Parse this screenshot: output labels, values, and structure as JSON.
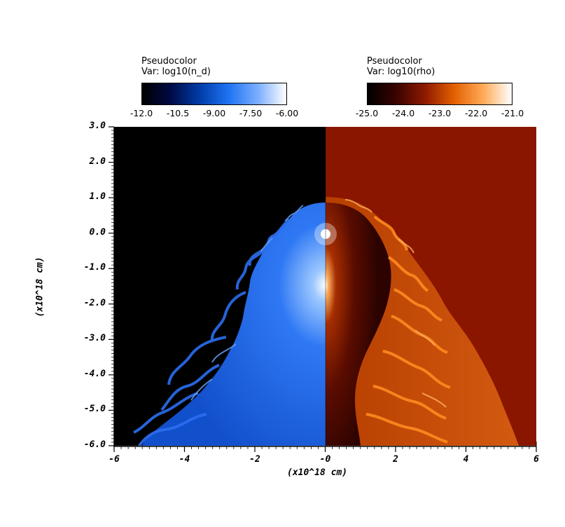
{
  "legend_left": {
    "title_line1": "Pseudocolor",
    "title_line2": "Var: log10(n_d)",
    "ticks": [
      "-12.0",
      "-10.5",
      "-9.00",
      "-7.50",
      "-6.00"
    ],
    "gradient": [
      "#000000",
      "#000a45",
      "#003da8",
      "#1f73f2",
      "#79adff",
      "#ffffff"
    ]
  },
  "legend_right": {
    "title_line1": "Pseudocolor",
    "title_line2": "Var: log10(rho)",
    "ticks": [
      "-25.0",
      "-24.0",
      "-23.0",
      "-22.0",
      "-21.0"
    ],
    "gradient": [
      "#000000",
      "#3a0300",
      "#8e1a00",
      "#e36000",
      "#ffa957",
      "#ffffff"
    ]
  },
  "y_axis": {
    "label": "(x10^18 cm)",
    "ticks": [
      "3.0",
      "2.0",
      "1.0",
      "0.0",
      "-1.0",
      "-2.0",
      "-3.0",
      "-4.0",
      "-5.0",
      "-6.0"
    ],
    "range": [
      -6.0,
      3.0
    ]
  },
  "x_axis": {
    "label": "(x10^18 cm)",
    "ticks": [
      "-6",
      "-4",
      "-2",
      "-0",
      "2",
      "4",
      "6"
    ],
    "range": [
      -6,
      6
    ]
  },
  "colors": {
    "left_background": "#000000",
    "left_cavity": "#1a5ee0",
    "right_background": "#8a1600",
    "right_shell": "#c84a05",
    "right_cavity": "#3b0500"
  }
}
